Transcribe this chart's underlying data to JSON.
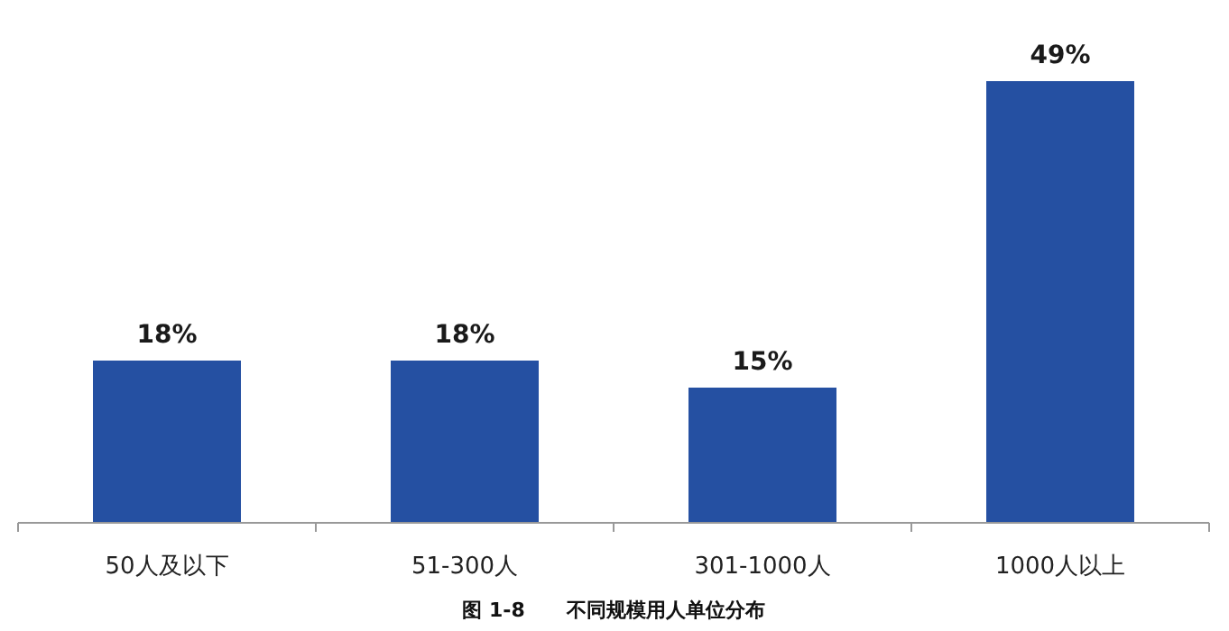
{
  "chart_data": {
    "type": "bar",
    "title": "图 1-8      不同规模用人单位分布",
    "categories": [
      "50人及以下",
      "51-300人",
      "301-1000人",
      "1000人以上"
    ],
    "values": [
      18,
      18,
      15,
      49
    ],
    "value_labels": [
      "18%",
      "18%",
      "15%",
      "49%"
    ],
    "color": "#2550a2"
  }
}
